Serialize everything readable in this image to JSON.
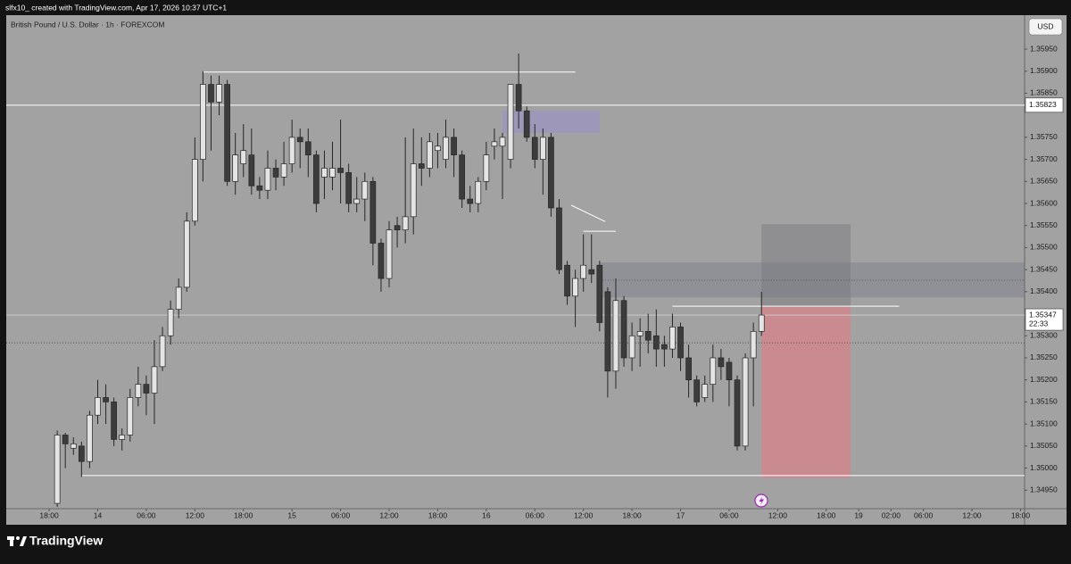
{
  "header": "slfx10_ created with TradingView.com, Apr 17, 2026 10:37 UTC+1",
  "brand": "TradingView",
  "currency_button": "USD",
  "chart_data": {
    "type": "candlestick",
    "title": "British Pound / U.S. Dollar · 1h · FOREXCOM",
    "up_color": "#e4e4e4",
    "down_color": "#3c3c3c",
    "x": [
      1,
      2,
      3,
      4,
      5,
      6,
      7,
      8,
      9,
      10,
      11,
      12,
      13,
      14,
      15,
      16,
      17,
      18,
      19,
      20,
      21,
      22,
      23,
      24,
      25,
      26,
      27,
      28,
      29,
      30,
      31,
      32,
      33,
      34,
      35,
      36,
      37,
      38,
      39,
      40,
      41,
      42,
      43,
      44,
      45,
      46,
      47,
      48,
      49,
      50,
      51,
      52,
      53,
      54,
      55,
      56,
      57,
      58,
      59,
      60,
      61,
      62,
      63,
      64,
      65,
      66,
      67,
      68,
      69,
      70,
      71,
      72,
      73,
      74,
      75,
      76,
      77,
      78,
      79,
      80,
      81,
      82,
      83,
      84,
      85,
      86,
      87,
      88
    ],
    "open": [
      1.3492,
      1.35075,
      1.35045,
      1.3505,
      1.35015,
      1.3512,
      1.3516,
      1.3515,
      1.35065,
      1.35075,
      1.3516,
      1.3519,
      1.3517,
      1.3523,
      1.353,
      1.3536,
      1.3541,
      1.3556,
      1.357,
      1.3587,
      1.3583,
      1.3587,
      1.3565,
      1.3569,
      1.3571,
      1.3564,
      1.3563,
      1.3568,
      1.3566,
      1.3569,
      1.3575,
      1.3574,
      1.3571,
      1.3566,
      1.3566,
      1.3568,
      1.3567,
      1.356,
      1.3561,
      1.3565,
      1.3551,
      1.3543,
      1.3555,
      1.3554,
      1.3557,
      1.3569,
      1.3568,
      1.3572,
      1.357,
      1.3575,
      1.3571,
      1.3561,
      1.356,
      1.3565,
      1.3573,
      1.3573,
      1.357,
      1.3587,
      1.3581,
      1.3575,
      1.357,
      1.3575,
      1.3559,
      1.3546,
      1.3539,
      1.3543,
      1.3545,
      1.3546,
      1.354,
      1.3522,
      1.3538,
      1.3525,
      1.353,
      1.3531,
      1.353,
      1.3528,
      1.3527,
      1.3532,
      1.3525,
      1.352,
      1.3516,
      1.3519,
      1.3525,
      1.3524,
      1.352,
      1.3505,
      1.3525,
      1.3531
    ],
    "high": [
      1.35085,
      1.3508,
      1.3507,
      1.3506,
      1.3513,
      1.352,
      1.3519,
      1.3516,
      1.3509,
      1.3518,
      1.3523,
      1.3521,
      1.3529,
      1.3532,
      1.3538,
      1.3543,
      1.3558,
      1.3575,
      1.359,
      1.3589,
      1.3589,
      1.3588,
      1.3576,
      1.3578,
      1.3577,
      1.3566,
      1.3572,
      1.357,
      1.3574,
      1.3579,
      1.3577,
      1.3577,
      1.3572,
      1.3572,
      1.3574,
      1.3579,
      1.3569,
      1.3566,
      1.3567,
      1.3566,
      1.3552,
      1.3556,
      1.3557,
      1.3575,
      1.3577,
      1.3575,
      1.3576,
      1.3576,
      1.3579,
      1.3577,
      1.3572,
      1.3564,
      1.3566,
      1.3574,
      1.3577,
      1.3576,
      1.3587,
      1.3594,
      1.3582,
      1.3578,
      1.3577,
      1.3576,
      1.3561,
      1.3547,
      1.3545,
      1.3553,
      1.3553,
      1.3547,
      1.3541,
      1.3543,
      1.3539,
      1.3533,
      1.3534,
      1.3535,
      1.3536,
      1.353,
      1.3535,
      1.3533,
      1.3528,
      1.3521,
      1.3521,
      1.3528,
      1.3527,
      1.3525,
      1.3521,
      1.3526,
      1.3533,
      1.354
    ],
    "low": [
      1.34912,
      1.35,
      1.3503,
      1.3498,
      1.35,
      1.351,
      1.351,
      1.3505,
      1.3504,
      1.3506,
      1.3514,
      1.3512,
      1.351,
      1.3522,
      1.3528,
      1.3534,
      1.354,
      1.3555,
      1.3565,
      1.3572,
      1.358,
      1.3564,
      1.3562,
      1.3566,
      1.3562,
      1.3561,
      1.3561,
      1.3563,
      1.3564,
      1.3567,
      1.3568,
      1.3566,
      1.3558,
      1.3561,
      1.3563,
      1.356,
      1.3558,
      1.3558,
      1.3556,
      1.3546,
      1.354,
      1.3541,
      1.355,
      1.3551,
      1.3553,
      1.3564,
      1.3566,
      1.3568,
      1.3568,
      1.3566,
      1.3559,
      1.3558,
      1.3558,
      1.3563,
      1.357,
      1.3561,
      1.3568,
      1.3577,
      1.3574,
      1.3568,
      1.3562,
      1.3557,
      1.3544,
      1.3537,
      1.3532,
      1.354,
      1.3542,
      1.3531,
      1.3516,
      1.3518,
      1.3523,
      1.3522,
      1.3523,
      1.3526,
      1.3523,
      1.3523,
      1.3525,
      1.3522,
      1.3516,
      1.3514,
      1.3515,
      1.3515,
      1.352,
      1.3514,
      1.3504,
      1.3504,
      1.3514,
      1.353
    ],
    "close": [
      1.35075,
      1.35055,
      1.35055,
      1.35015,
      1.3512,
      1.3516,
      1.3515,
      1.35065,
      1.35075,
      1.3516,
      1.3519,
      1.3517,
      1.3523,
      1.353,
      1.3536,
      1.3541,
      1.3556,
      1.357,
      1.3587,
      1.3583,
      1.3587,
      1.3565,
      1.3571,
      1.3572,
      1.3564,
      1.3563,
      1.3568,
      1.3566,
      1.3569,
      1.3575,
      1.3574,
      1.3571,
      1.356,
      1.3568,
      1.3568,
      1.3567,
      1.356,
      1.3561,
      1.3565,
      1.3551,
      1.3543,
      1.3554,
      1.3554,
      1.3557,
      1.3569,
      1.3568,
      1.3574,
      1.3573,
      1.3575,
      1.3571,
      1.3561,
      1.356,
      1.3565,
      1.3571,
      1.3574,
      1.3575,
      1.3587,
      1.3581,
      1.3575,
      1.357,
      1.3575,
      1.3559,
      1.3545,
      1.3539,
      1.3543,
      1.3546,
      1.3544,
      1.3533,
      1.3522,
      1.3538,
      1.3525,
      1.353,
      1.3531,
      1.3529,
      1.3527,
      1.3527,
      1.3532,
      1.3525,
      1.352,
      1.3515,
      1.3519,
      1.3525,
      1.3523,
      1.352,
      1.3505,
      1.3525,
      1.3531,
      1.35347
    ],
    "xlim": [
      -5.3,
      120.5
    ],
    "ylim": [
      1.34908,
      1.36027
    ],
    "xticks": [
      {
        "value": 0,
        "label": "18:00"
      },
      {
        "value": 6,
        "label": "14"
      },
      {
        "value": 12,
        "label": "06:00"
      },
      {
        "value": 18,
        "label": "12:00"
      },
      {
        "value": 24,
        "label": "18:00"
      },
      {
        "value": 30,
        "label": "15"
      },
      {
        "value": 36,
        "label": "06:00"
      },
      {
        "value": 42,
        "label": "12:00"
      },
      {
        "value": 48,
        "label": "18:00"
      },
      {
        "value": 54,
        "label": "16"
      },
      {
        "value": 60,
        "label": "06:00"
      },
      {
        "value": 66,
        "label": "12:00"
      },
      {
        "value": 72,
        "label": "18:00"
      },
      {
        "value": 78,
        "label": "17"
      },
      {
        "value": 84,
        "label": "06:00"
      },
      {
        "value": 90,
        "label": "12:00"
      },
      {
        "value": 96,
        "label": "18:00"
      },
      {
        "value": 100,
        "label": "19"
      },
      {
        "value": 104,
        "label": "02:00"
      },
      {
        "value": 108,
        "label": "06:00"
      },
      {
        "value": 114,
        "label": "12:00"
      },
      {
        "value": 120,
        "label": "18:00"
      }
    ],
    "yticks": [
      {
        "value": 1.3495,
        "label": "1.34950"
      },
      {
        "value": 1.35,
        "label": "1.35000"
      },
      {
        "value": 1.3505,
        "label": "1.35050"
      },
      {
        "value": 1.351,
        "label": "1.35100"
      },
      {
        "value": 1.3515,
        "label": "1.35150"
      },
      {
        "value": 1.352,
        "label": "1.35200"
      },
      {
        "value": 1.3525,
        "label": "1.35250"
      },
      {
        "value": 1.353,
        "label": "1.35300"
      },
      {
        "value": 1.354,
        "label": "1.35400"
      },
      {
        "value": 1.3545,
        "label": "1.35450"
      },
      {
        "value": 1.355,
        "label": "1.35500"
      },
      {
        "value": 1.3555,
        "label": "1.35550"
      },
      {
        "value": 1.356,
        "label": "1.35600"
      },
      {
        "value": 1.3565,
        "label": "1.35650"
      },
      {
        "value": 1.357,
        "label": "1.35700"
      },
      {
        "value": 1.3575,
        "label": "1.35750"
      },
      {
        "value": 1.3585,
        "label": "1.35850"
      },
      {
        "value": 1.359,
        "label": "1.35900"
      },
      {
        "value": 1.3595,
        "label": "1.35950"
      }
    ],
    "grid": false,
    "marked_level": 1.35823,
    "last_price": 1.35347,
    "countdown": "22:33",
    "levels": [
      {
        "price": 1.35898,
        "x": [
          19,
          65
        ]
      },
      {
        "price": 1.34983,
        "x": [
          4,
          120.5
        ]
      },
      {
        "price": 1.35367,
        "x": [
          77,
          105
        ]
      },
      {
        "price": 1.35537,
        "x": [
          66,
          70
        ]
      }
    ],
    "dotted_levels": [
      {
        "price": 1.35426,
        "x": [
          68,
          120.5
        ]
      },
      {
        "price": 1.35284,
        "x": [
          -5.3,
          120.5
        ]
      }
    ],
    "trend_lines": [
      {
        "x": [
          64.5,
          68.7
        ],
        "price": [
          1.35596,
          1.35559
        ]
      }
    ],
    "zones": [
      {
        "x": [
          56,
          68
        ],
        "price": [
          1.3581,
          1.3576
        ],
        "color": "rgba(150,140,215,0.45)"
      },
      {
        "x": [
          68,
          120.5
        ],
        "price": [
          1.35466,
          1.35387
        ],
        "color": "rgba(110,115,130,0.35)"
      },
      {
        "x": [
          88,
          99
        ],
        "price": [
          1.35553,
          1.35365
        ],
        "color": "rgba(120,120,125,0.45)"
      },
      {
        "x": [
          88,
          99
        ],
        "price": [
          1.35365,
          1.34978
        ],
        "color": "rgba(235,120,130,0.55)"
      }
    ]
  }
}
